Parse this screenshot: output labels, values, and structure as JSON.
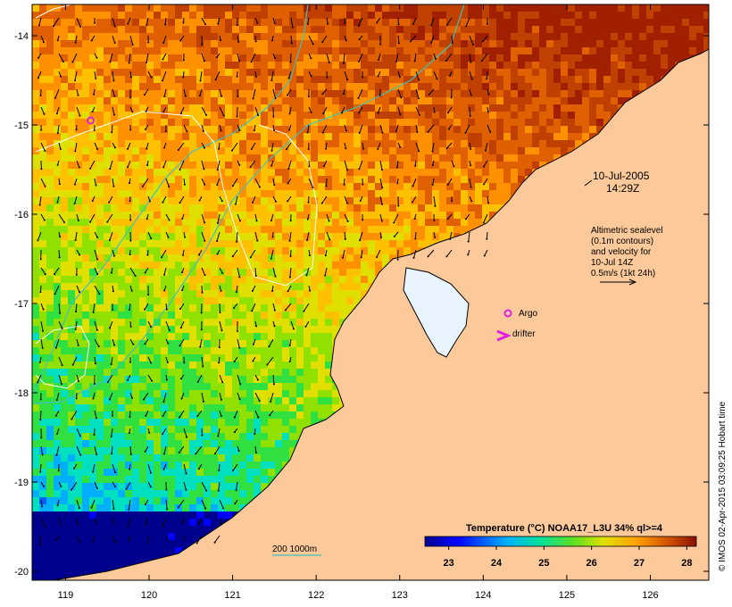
{
  "map": {
    "lon_range": [
      118.6,
      126.7
    ],
    "lat_range": [
      -20.1,
      -13.65
    ],
    "x_ticks": [
      119,
      120,
      121,
      122,
      123,
      124,
      125,
      126
    ],
    "y_ticks": [
      -14,
      -15,
      -16,
      -17,
      -18,
      -19,
      -20
    ],
    "x_tick_labels": [
      "119",
      "120",
      "121",
      "122",
      "123",
      "124",
      "125",
      "126"
    ],
    "y_tick_labels": [
      "-14",
      "-15",
      "-16",
      "-17",
      "-18",
      "-19",
      "-20"
    ]
  },
  "annotation": {
    "date": "10-Jul-2005",
    "time": "14:29Z",
    "sealevel_lines": [
      "Altimetric sealevel",
      "(0.1m contours)",
      "and velocity for",
      "10-Jul 14Z",
      "0.5m/s (1kt 24h)"
    ]
  },
  "legend": {
    "argo_label": "Argo",
    "drifter_label": "drifter",
    "bathy_label": "200  1000m"
  },
  "colorbar": {
    "title": "Temperature (°C) NOAA17_L3U 34% ql>=4",
    "range": [
      22.5,
      28.2
    ],
    "ticks": [
      23,
      24,
      25,
      26,
      27,
      28
    ],
    "tick_labels": [
      "23",
      "24",
      "25",
      "26",
      "27",
      "28"
    ]
  },
  "credit": "© IMOS 02-Apr-2015 03:09:25 Hobart time",
  "colors": {
    "land": "#fcc99b",
    "argo": "#e020e0",
    "drifter": "#e020e0",
    "bathy_200": "#cfe8e0",
    "bathy_1000": "#40c0c0"
  },
  "markers": {
    "argo_lonlat": [
      [
        119.3,
        -14.95
      ],
      [
        124.3,
        -17.04
      ]
    ],
    "drifter_lonlat": [
      124.25,
      -17.28
    ]
  }
}
